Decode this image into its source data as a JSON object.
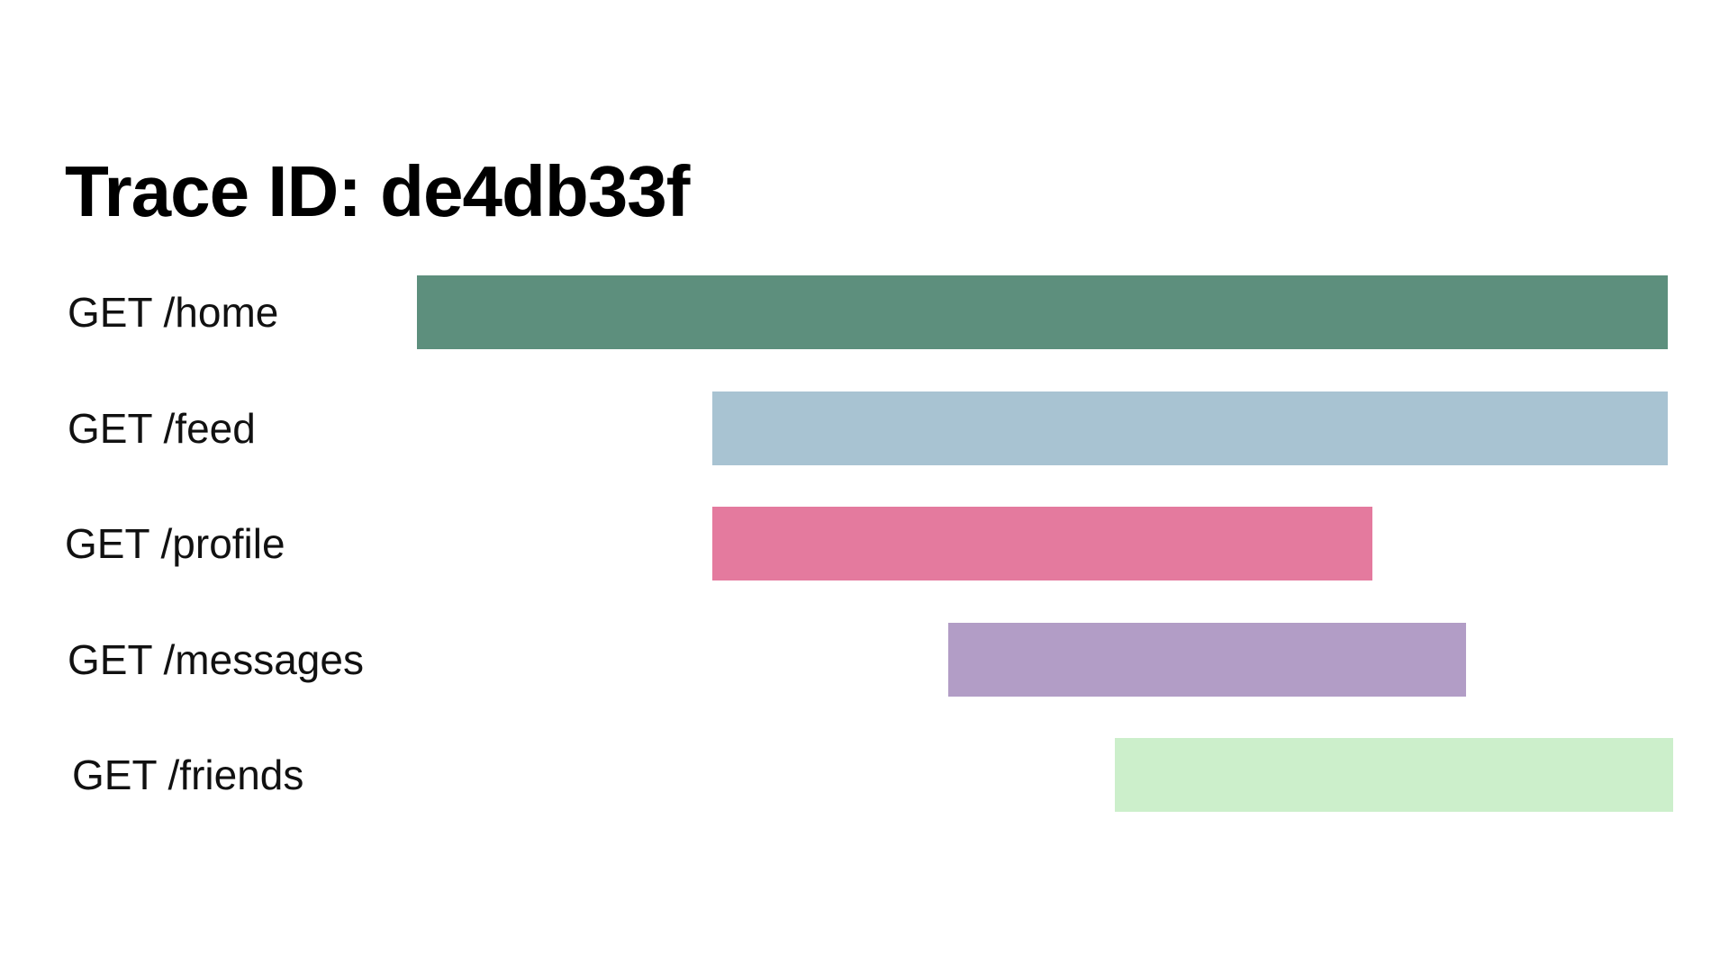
{
  "title": "Trace ID: de4db33f",
  "chart_data": {
    "type": "bar",
    "orientation": "horizontal-timeline",
    "title": "Trace ID: de4db33f",
    "xlim": [
      0,
      100
    ],
    "grid": false,
    "legend": "none",
    "spans": [
      {
        "label": "GET /home",
        "start": 0,
        "end": 100,
        "color": "#5d8f7d"
      },
      {
        "label": "GET /feed",
        "start": 23.6,
        "end": 100,
        "color": "#a8c3d2"
      },
      {
        "label": "GET /profile",
        "start": 23.6,
        "end": 76.4,
        "color": "#e47a9e"
      },
      {
        "label": "GET /messages",
        "start": 42.5,
        "end": 83.9,
        "color": "#b29dc6"
      },
      {
        "label": "GET /friends",
        "start": 55.8,
        "end": 100.4,
        "color": "#ccefcb"
      }
    ]
  }
}
